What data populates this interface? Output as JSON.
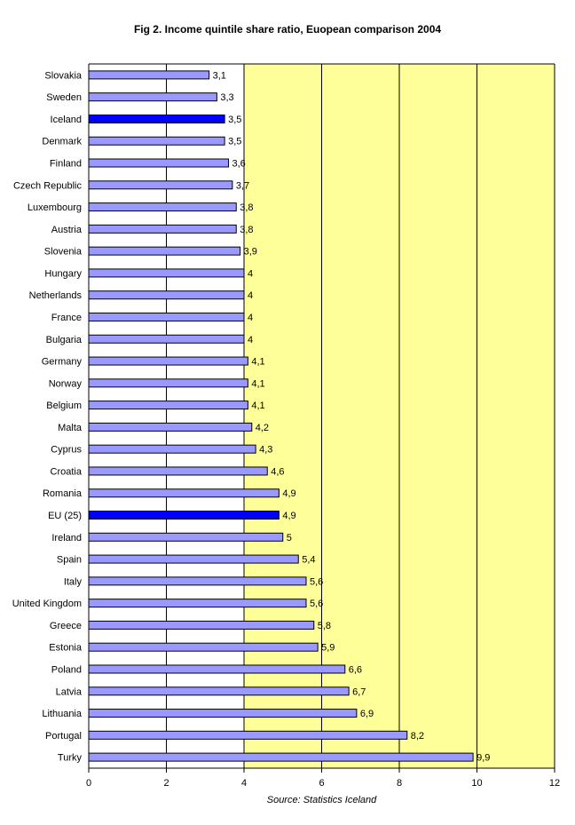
{
  "chart_data": {
    "type": "bar",
    "orientation": "horizontal",
    "title": "Fig 2. Income quintile share ratio, Euopean comparison 2004",
    "source": "Source: Statistics Iceland",
    "xlim": [
      0,
      12
    ],
    "xticks": [
      "0",
      "2",
      "4",
      "6",
      "8",
      "10",
      "12"
    ],
    "grid": true,
    "categories": [
      "Slovakia",
      "Sweden",
      "Iceland",
      "Denmark",
      "Finland",
      "Czech Republic",
      "Luxembourg",
      "Austria",
      "Slovenia",
      "Hungary",
      "Netherlands",
      "France",
      "Bulgaria",
      "Germany",
      "Norway",
      "Belgium",
      "Malta",
      "Cyprus",
      "Croatia",
      "Romania",
      "EU (25)",
      "Ireland",
      "Spain",
      "Italy",
      "United Kingdom",
      "Greece",
      "Estonia",
      "Poland",
      "Latvia",
      "Lithuania",
      "Portugal",
      "Turky"
    ],
    "values": [
      3.1,
      3.3,
      3.5,
      3.5,
      3.6,
      3.7,
      3.8,
      3.8,
      3.9,
      4,
      4,
      4,
      4,
      4.1,
      4.1,
      4.1,
      4.2,
      4.3,
      4.6,
      4.9,
      4.9,
      5,
      5.4,
      5.6,
      5.6,
      5.8,
      5.9,
      6.6,
      6.7,
      6.9,
      8.2,
      9.9
    ],
    "value_labels": [
      "3,1",
      "3,3",
      "3,5",
      "3,5",
      "3,6",
      "3,7",
      "3,8",
      "3,8",
      "3,9",
      "4",
      "4",
      "4",
      "4",
      "4,1",
      "4,1",
      "4,1",
      "4,2",
      "4,3",
      "4,6",
      "4,9",
      "4,9",
      "5",
      "5,4",
      "5,6",
      "5,6",
      "5,8",
      "5,9",
      "6,6",
      "6,7",
      "6,9",
      "8,2",
      "9,9"
    ],
    "highlighted": [
      "Iceland",
      "EU (25)"
    ],
    "colors": {
      "bar": "#9999ff",
      "highlight": "#0000ff",
      "plot_background": "#ffff99",
      "left_band": "#ffffff",
      "grid": "#000000",
      "bar_outline": "#000000"
    }
  }
}
